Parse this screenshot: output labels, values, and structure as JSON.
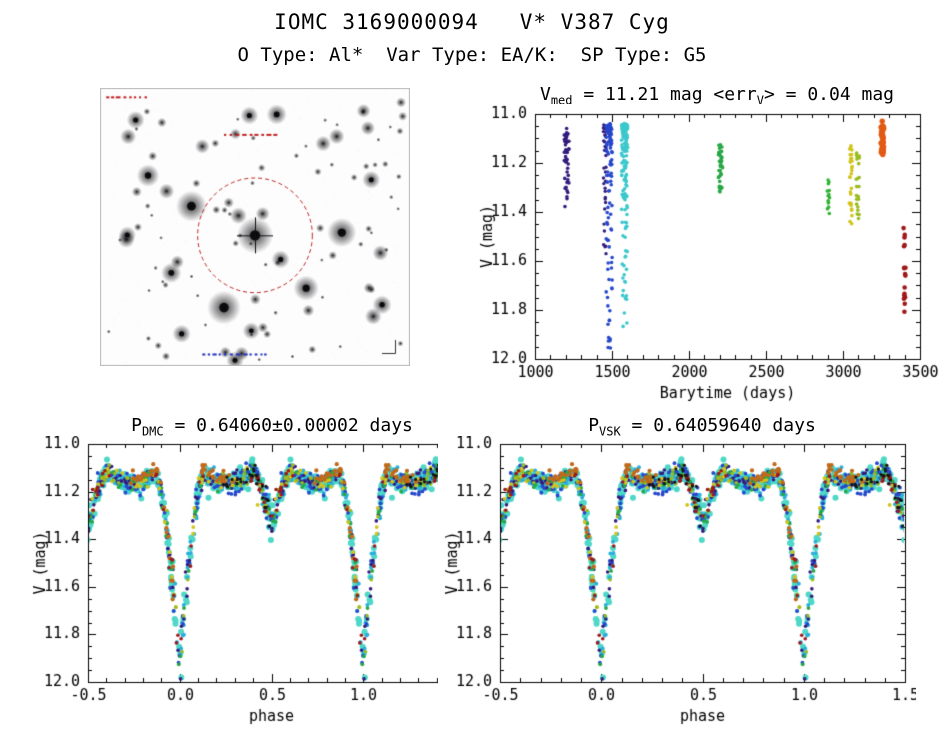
{
  "page": {
    "title": "IOMC 3169000094   V* V387 Cyg",
    "subtitle": "O Type: Al*  Var Type: EA/K:  SP Type: G5"
  },
  "chart_data": [
    {
      "id": "finder",
      "type": "image",
      "label": "finding-chart",
      "target": {
        "x": 0.5,
        "y": 0.53,
        "core_r": 6.5,
        "circle_r_frac": 0.185,
        "circle_color": "#c22020"
      },
      "bright_stars": [
        [
          0.295,
          0.425,
          5.5
        ],
        [
          0.78,
          0.52,
          5.2
        ],
        [
          0.4,
          0.79,
          6.0
        ],
        [
          0.665,
          0.72,
          4.5
        ],
        [
          0.155,
          0.315,
          4.0
        ],
        [
          0.57,
          0.095,
          3.6
        ],
        [
          0.23,
          0.665,
          3.6
        ],
        [
          0.875,
          0.33,
          3.2
        ],
        [
          0.115,
          0.115,
          3.2
        ],
        [
          0.91,
          0.78,
          3.4
        ],
        [
          0.085,
          0.545,
          3.0
        ],
        [
          0.72,
          0.2,
          2.8
        ],
        [
          0.33,
          0.21,
          2.6
        ]
      ],
      "n_faint_stars": 95,
      "annotations": [
        {
          "color": "#c22020",
          "x": 0.02,
          "y": 0.03,
          "w": 0.13
        },
        {
          "color": "#c22020",
          "x": 0.4,
          "y": 0.165,
          "w": 0.17
        },
        {
          "color": "#2030c0",
          "x": 0.33,
          "y": 0.955,
          "w": 0.21
        }
      ]
    },
    {
      "id": "timeseries",
      "type": "scatter",
      "title_parts": [
        {
          "text": "V"
        },
        {
          "text": "med",
          "sub": true
        },
        {
          "text": " = 11.21 mag <err"
        },
        {
          "text": "V",
          "sub": true
        },
        {
          "text": "> = 0.04 mag"
        }
      ],
      "xlabel": "Barytime (days)",
      "ylabel": "V (mag)",
      "xlim": [
        1000,
        3500
      ],
      "ylim": [
        11.0,
        12.0
      ],
      "y_inverted": true,
      "xticks": [
        1000,
        1500,
        2000,
        2500,
        3000,
        3500
      ],
      "xtick_labels": [
        "1000",
        "1500",
        "2000",
        "2500",
        "3000",
        "3500"
      ],
      "yticks": [
        11.0,
        11.2,
        11.4,
        11.6,
        11.8,
        12.0
      ],
      "ytick_labels": [
        "11.0",
        "11.2",
        "11.4",
        "11.6",
        "11.8",
        "12.0"
      ],
      "x_minor_step": 100,
      "y_minor_step": 0.05,
      "median_v_mag": 11.21,
      "mean_err_v_mag": 0.04,
      "clusters": [
        {
          "t": 1205,
          "dt": 16,
          "v_bright": 11.07,
          "v_faint": 11.37,
          "n": 48,
          "color": "#331c7e",
          "size": 1.8,
          "exp": 1.7
        },
        {
          "t": 1452,
          "dt": 10,
          "v_bright": 11.06,
          "v_faint": 11.62,
          "n": 35,
          "color": "#331c7e",
          "size": 1.7,
          "exp": 2.4
        },
        {
          "t": 1482,
          "dt": 20,
          "v_bright": 11.05,
          "v_faint": 11.95,
          "n": 115,
          "color": "#2748cc",
          "size": 1.8,
          "exp": 4.0
        },
        {
          "t": 1582,
          "dt": 20,
          "v_bright": 11.05,
          "v_faint": 11.87,
          "n": 165,
          "color": "#3cc8cc",
          "size": 1.8,
          "exp": 3.5
        },
        {
          "t": 2205,
          "dt": 14,
          "v_bright": 11.13,
          "v_faint": 11.32,
          "n": 42,
          "color": "#28a846",
          "size": 1.8,
          "exp": 1.2
        },
        {
          "t": 2905,
          "dt": 8,
          "v_bright": 11.27,
          "v_faint": 11.41,
          "n": 14,
          "color": "#30b432",
          "size": 1.8,
          "exp": 1.0
        },
        {
          "t": 3050,
          "dt": 10,
          "v_bright": 11.13,
          "v_faint": 11.46,
          "n": 30,
          "color": "#d2c41c",
          "size": 1.8,
          "exp": 1.3
        },
        {
          "t": 3096,
          "dt": 10,
          "v_bright": 11.16,
          "v_faint": 11.43,
          "n": 22,
          "color": "#9abc1e",
          "size": 1.8,
          "exp": 1.2
        },
        {
          "t": 3256,
          "dt": 9,
          "v_bright": 11.04,
          "v_faint": 11.17,
          "n": 34,
          "color": "#e25a14",
          "size": 2.7,
          "exp": 1.0
        },
        {
          "t": 3400,
          "dt": 7,
          "v_bright": 11.45,
          "v_faint": 11.82,
          "n": 17,
          "color": "#9e1a1a",
          "size": 2.3,
          "exp": 1.0
        }
      ]
    },
    {
      "id": "folded_dmc",
      "type": "scatter",
      "title_parts": [
        {
          "text": "P"
        },
        {
          "text": "DMC",
          "sub": true
        },
        {
          "text": " = 0.64060±0.00002 days"
        }
      ],
      "xlabel": "phase",
      "ylabel": "V (mag)",
      "xlim": [
        -0.5,
        1.5
      ],
      "ylim": [
        11.0,
        12.0
      ],
      "y_inverted": true,
      "xticks": [
        -0.5,
        0.0,
        0.5,
        1.0,
        1.5
      ],
      "xtick_labels": [
        "-0.5",
        "0.0",
        "0.5",
        "1.0",
        "1.5"
      ],
      "yticks": [
        11.0,
        11.2,
        11.4,
        11.6,
        11.8,
        12.0
      ],
      "ytick_labels": [
        "11.0",
        "11.2",
        "11.4",
        "11.6",
        "11.8",
        "12.0"
      ],
      "x_minor_step": 0.1,
      "y_minor_step": 0.05,
      "period_days": 0.6406,
      "period_err_days": 2e-05,
      "model": {
        "base": 11.13,
        "wave_amp": 0.035,
        "primary": {
          "center": 0.0,
          "half_width": 0.125,
          "depth": 0.83,
          "shape": 1.4
        },
        "secondary": {
          "center": 0.5,
          "half_width": 0.105,
          "depth": 0.245,
          "shape": 1.5
        }
      },
      "epochs": [
        {
          "name": "turquoise",
          "color": "#4fd8c8",
          "n": 250,
          "size": 3.0,
          "sigma": 0.02
        },
        {
          "name": "cyan",
          "color": "#2ab0dc",
          "n": 140,
          "size": 2.0,
          "sigma": 0.022
        },
        {
          "name": "blue",
          "color": "#2748cc",
          "n": 100,
          "size": 1.9,
          "sigma": 0.022
        },
        {
          "name": "navy",
          "color": "#331c7e",
          "n": 90,
          "size": 1.8,
          "sigma": 0.02
        },
        {
          "name": "green",
          "color": "#28a846",
          "n": 60,
          "size": 1.9,
          "sigma": 0.018
        },
        {
          "name": "yellow",
          "color": "#d2c41c",
          "n": 50,
          "size": 1.9,
          "sigma": 0.018
        },
        {
          "name": "olive",
          "color": "#9abc1e",
          "n": 40,
          "size": 1.8,
          "sigma": 0.018
        },
        {
          "name": "orange-brown",
          "color": "#c06a1a",
          "n": 55,
          "size": 2.1,
          "sigma": 0.014,
          "v_offset": -0.02,
          "windows": [
            [
              0.12,
              0.3
            ],
            [
              0.72,
              0.97
            ]
          ]
        },
        {
          "name": "dark-red",
          "color": "#9e1a1a",
          "n": 40,
          "size": 1.8,
          "sigma": 0.02,
          "windows": [
            [
              0.38,
              0.62
            ],
            [
              0.86,
              1.14
            ]
          ]
        },
        {
          "name": "black",
          "color": "#141414",
          "n": 30,
          "size": 1.6,
          "sigma": 0.018,
          "windows": [
            [
              0.24,
              0.5
            ]
          ]
        }
      ]
    },
    {
      "id": "folded_vsk",
      "type": "scatter",
      "title_parts": [
        {
          "text": "P"
        },
        {
          "text": "VSK",
          "sub": true
        },
        {
          "text": " = 0.64059640 days"
        }
      ],
      "xlabel": "phase",
      "ylabel": "V (mag)",
      "xlim": [
        -0.5,
        1.5
      ],
      "ylim": [
        11.0,
        12.0
      ],
      "y_inverted": true,
      "xticks": [
        -0.5,
        0.0,
        0.5,
        1.0,
        1.5
      ],
      "xtick_labels": [
        "-0.5",
        "0.0",
        "0.5",
        "1.0",
        "1.5"
      ],
      "yticks": [
        11.0,
        11.2,
        11.4,
        11.6,
        11.8,
        12.0
      ],
      "ytick_labels": [
        "11.0",
        "11.2",
        "11.4",
        "11.6",
        "11.8",
        "12.0"
      ],
      "x_minor_step": 0.1,
      "y_minor_step": 0.05,
      "period_days": 0.6405964,
      "same_points_as": "folded_dmc"
    }
  ]
}
